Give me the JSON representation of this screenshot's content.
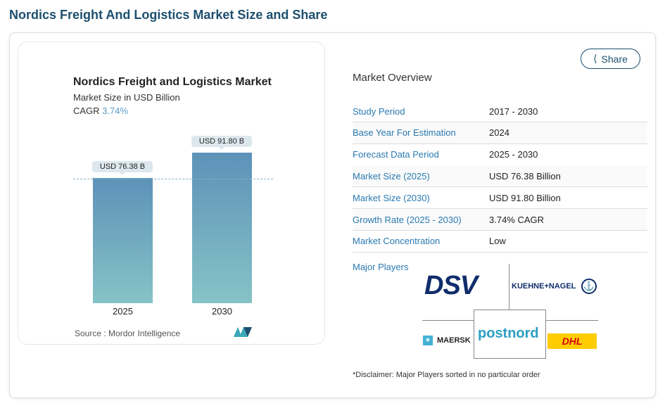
{
  "page_title": "Nordics Freight And Logistics Market Size and Share",
  "chart_data": {
    "type": "bar",
    "title": "Nordics Freight and Logistics Market",
    "subtitle": "Market Size in USD Billion",
    "cagr_label": "CAGR",
    "cagr_value": "3.74%",
    "categories": [
      "2025",
      "2030"
    ],
    "values": [
      76.38,
      91.8
    ],
    "data_labels": [
      "USD 76.38 B",
      "USD 91.80 B"
    ],
    "ylim": [
      0,
      100
    ],
    "source": "Source :  Mordor Intelligence"
  },
  "overview": {
    "title": "Market Overview",
    "share_label": "Share",
    "rows": [
      {
        "k": "Study Period",
        "v": "2017 - 2030"
      },
      {
        "k": "Base Year For Estimation",
        "v": "2024"
      },
      {
        "k": "Forecast Data Period",
        "v": "2025 - 2030"
      },
      {
        "k": "Market Size (2025)",
        "v": "USD 76.38 Billion"
      },
      {
        "k": "Market Size (2030)",
        "v": "USD 91.80 Billion"
      },
      {
        "k": "Growth Rate (2025 - 2030)",
        "v": "3.74% CAGR"
      },
      {
        "k": "Market Concentration",
        "v": "Low"
      }
    ],
    "major_players_label": "Major Players",
    "players": [
      "DSV",
      "KUEHNE+NAGEL",
      "MAERSK",
      "postnord",
      "DHL"
    ],
    "disclaimer": "*Disclaimer: Major Players sorted in no particular order"
  }
}
